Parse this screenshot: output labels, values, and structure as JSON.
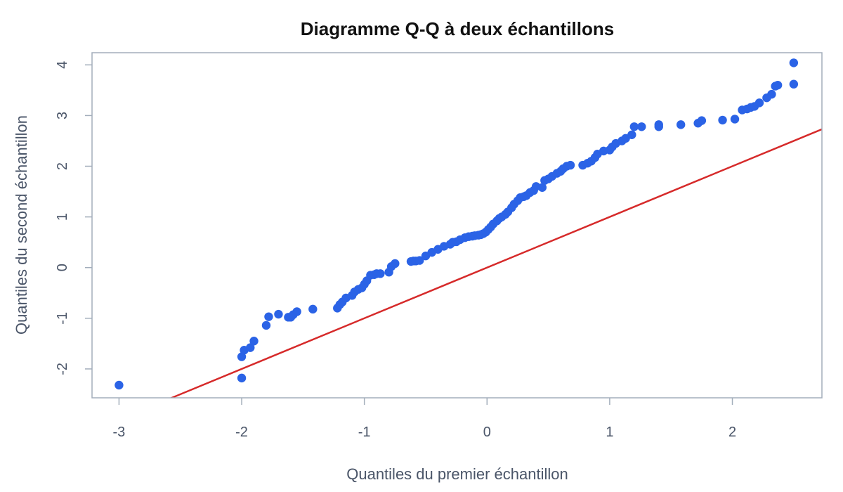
{
  "chart_data": {
    "type": "scatter",
    "title": "Diagramme Q-Q à deux échantillons",
    "xlabel": "Quantiles du premier échantillon",
    "ylabel": "Quantiles du second échantillon",
    "xlim": [
      -3.22,
      2.73
    ],
    "ylim": [
      -2.57,
      4.24
    ],
    "x_ticks": [
      -3,
      -2,
      -1,
      0,
      1,
      2
    ],
    "y_ticks": [
      -2,
      -1,
      0,
      1,
      2,
      3,
      4
    ],
    "grid": false,
    "legend": "none",
    "colors": {
      "points": "#2b63e6",
      "reference_line": "#d62a2a",
      "frame": "#a3aebb",
      "text": "#4a5568"
    },
    "reference_line": {
      "intercept": 0,
      "slope": 1
    },
    "series": [
      {
        "x": [
          -3.0,
          -2.0,
          -2.0,
          -1.98,
          -1.93,
          -1.9,
          -1.8,
          -1.78,
          -1.7,
          -1.62,
          -1.6,
          -1.58,
          -1.55,
          -1.42,
          -1.22,
          -1.2,
          -1.18,
          -1.15,
          -1.1,
          -1.08,
          -1.05,
          -1.02,
          -1.0,
          -0.98,
          -0.95,
          -0.92,
          -0.9,
          -0.87,
          -0.8,
          -0.78,
          -0.75,
          -0.62,
          -0.6,
          -0.58,
          -0.55,
          -0.5,
          -0.45,
          -0.4,
          -0.35,
          -0.3,
          -0.28,
          -0.25,
          -0.22,
          -0.18,
          -0.15,
          -0.12,
          -0.1,
          -0.07,
          -0.05,
          -0.03,
          -0.01,
          0.01,
          0.03,
          0.05,
          0.08,
          0.1,
          0.12,
          0.15,
          0.17,
          0.2,
          0.22,
          0.25,
          0.27,
          0.3,
          0.32,
          0.35,
          0.38,
          0.4,
          0.45,
          0.47,
          0.5,
          0.53,
          0.57,
          0.6,
          0.62,
          0.65,
          0.68,
          0.78,
          0.82,
          0.85,
          0.88,
          0.9,
          0.95,
          1.0,
          1.02,
          1.05,
          1.1,
          1.13,
          1.18,
          1.2,
          1.26,
          1.4,
          1.4,
          1.58,
          1.72,
          1.75,
          1.92,
          2.02,
          2.08,
          2.12,
          2.15,
          2.18,
          2.22,
          2.28,
          2.32,
          2.35,
          2.37,
          2.5,
          2.5
        ],
        "y": [
          -2.32,
          -2.18,
          -1.76,
          -1.63,
          -1.58,
          -1.45,
          -1.14,
          -0.97,
          -0.92,
          -0.98,
          -0.98,
          -0.93,
          -0.87,
          -0.82,
          -0.8,
          -0.73,
          -0.68,
          -0.6,
          -0.55,
          -0.48,
          -0.43,
          -0.4,
          -0.33,
          -0.26,
          -0.15,
          -0.14,
          -0.12,
          -0.12,
          -0.09,
          0.02,
          0.08,
          0.12,
          0.13,
          0.13,
          0.14,
          0.23,
          0.3,
          0.36,
          0.42,
          0.46,
          0.5,
          0.51,
          0.55,
          0.59,
          0.61,
          0.62,
          0.63,
          0.64,
          0.65,
          0.67,
          0.7,
          0.75,
          0.8,
          0.86,
          0.92,
          0.97,
          1.0,
          1.05,
          1.1,
          1.18,
          1.25,
          1.32,
          1.38,
          1.4,
          1.42,
          1.48,
          1.52,
          1.6,
          1.58,
          1.72,
          1.75,
          1.8,
          1.86,
          1.9,
          1.95,
          2.0,
          2.02,
          2.02,
          2.06,
          2.1,
          2.17,
          2.24,
          2.3,
          2.32,
          2.38,
          2.45,
          2.5,
          2.55,
          2.62,
          2.78,
          2.78,
          2.82,
          2.78,
          2.82,
          2.85,
          2.9,
          2.91,
          2.93,
          3.11,
          3.13,
          3.16,
          3.18,
          3.25,
          3.35,
          3.42,
          3.58,
          3.6,
          3.62,
          4.04
        ]
      }
    ]
  }
}
